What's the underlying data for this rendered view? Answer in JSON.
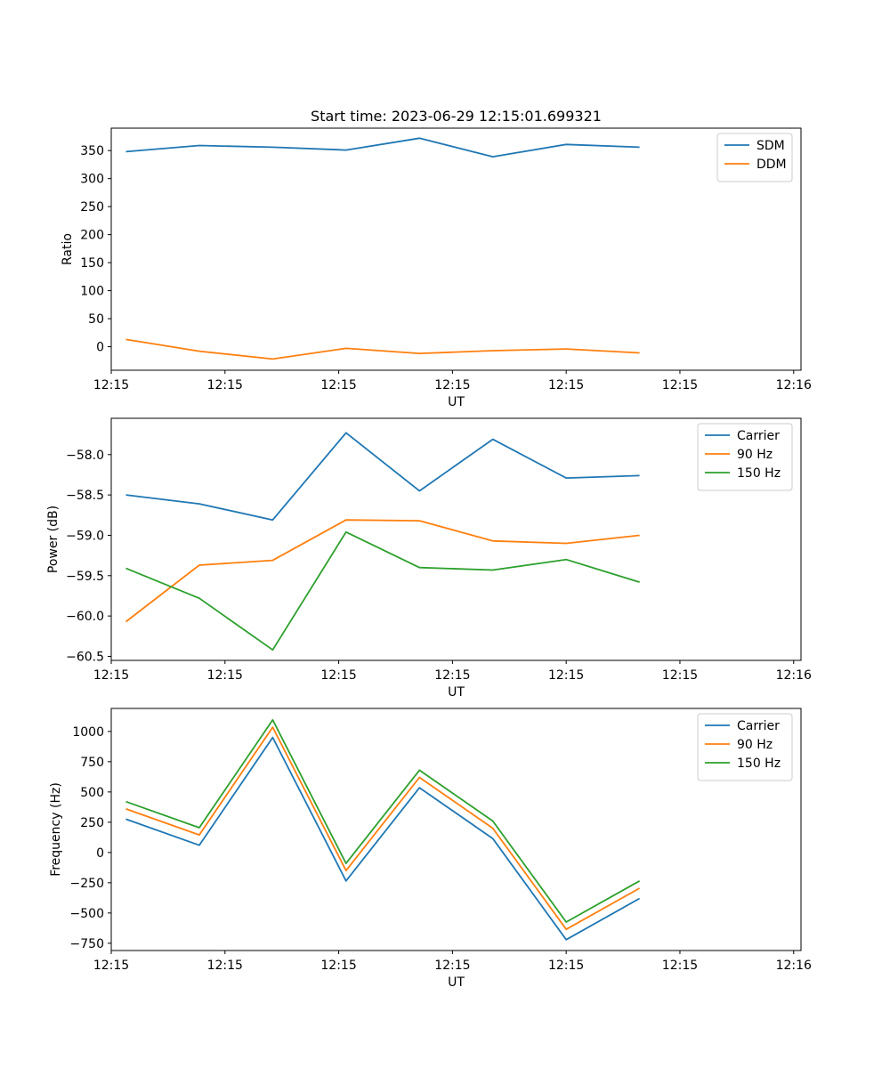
{
  "title": "Start time: 2023-06-29 12:15:01.699321",
  "chart_data": [
    {
      "type": "line",
      "title": "Start time: 2023-06-29 12:15:01.699321",
      "xlabel": "UT",
      "ylabel": "Ratio",
      "x": [
        1,
        2,
        3,
        4,
        5,
        6,
        7,
        8
      ],
      "xlim": [
        0.8,
        10.2
      ],
      "x_ticks": [
        {
          "x": 0.8,
          "label": "12:15"
        },
        {
          "x": 2.35,
          "label": "12:15"
        },
        {
          "x": 3.9,
          "label": "12:15"
        },
        {
          "x": 5.45,
          "label": "12:15"
        },
        {
          "x": 7.0,
          "label": "12:15"
        },
        {
          "x": 8.55,
          "label": "12:15"
        },
        {
          "x": 10.1,
          "label": "12:16"
        }
      ],
      "ylim": [
        -42,
        390
      ],
      "y_ticks": [
        0,
        50,
        100,
        150,
        200,
        250,
        300,
        350
      ],
      "grid": false,
      "legend": "top-right",
      "series": [
        {
          "name": "SDM",
          "color": "#1f77b4",
          "values": [
            348,
            359,
            356,
            351,
            372,
            339,
            361,
            356
          ]
        },
        {
          "name": "DDM",
          "color": "#ff7f0e",
          "values": [
            13,
            -8,
            -22,
            -3,
            -12,
            -7,
            -4,
            -11
          ]
        }
      ]
    },
    {
      "type": "line",
      "xlabel": "UT",
      "ylabel": "Power (dB)",
      "x": [
        1,
        2,
        3,
        4,
        5,
        6,
        7,
        8
      ],
      "xlim": [
        0.8,
        10.2
      ],
      "x_ticks": [
        {
          "x": 0.8,
          "label": "12:15"
        },
        {
          "x": 2.35,
          "label": "12:15"
        },
        {
          "x": 3.9,
          "label": "12:15"
        },
        {
          "x": 5.45,
          "label": "12:15"
        },
        {
          "x": 7.0,
          "label": "12:15"
        },
        {
          "x": 8.55,
          "label": "12:15"
        },
        {
          "x": 10.1,
          "label": "12:16"
        }
      ],
      "ylim": [
        -60.55,
        -57.55
      ],
      "y_ticks": [
        -58.0,
        -58.5,
        -59.0,
        -59.5,
        -60.0,
        -60.5
      ],
      "y_tick_labels": [
        "−58.0",
        "−58.5",
        "−59.0",
        "−59.5",
        "−60.0",
        "−60.5"
      ],
      "grid": false,
      "legend": "top-right",
      "series": [
        {
          "name": "Carrier",
          "color": "#1f77b4",
          "values": [
            -58.5,
            -58.61,
            -58.81,
            -57.73,
            -58.45,
            -57.81,
            -58.29,
            -58.26
          ]
        },
        {
          "name": "90 Hz",
          "color": "#ff7f0e",
          "values": [
            -60.07,
            -59.37,
            -59.31,
            -58.81,
            -58.82,
            -59.07,
            -59.1,
            -59.0
          ]
        },
        {
          "name": "150 Hz",
          "color": "#2ca02c",
          "values": [
            -59.41,
            -59.78,
            -60.42,
            -58.96,
            -59.4,
            -59.43,
            -59.3,
            -59.58
          ]
        }
      ]
    },
    {
      "type": "line",
      "xlabel": "UT",
      "ylabel": "Frequency (Hz)",
      "x": [
        1,
        2,
        3,
        4,
        5,
        6,
        7,
        8
      ],
      "xlim": [
        0.8,
        10.2
      ],
      "x_ticks": [
        {
          "x": 0.8,
          "label": "12:15"
        },
        {
          "x": 2.35,
          "label": "12:15"
        },
        {
          "x": 3.9,
          "label": "12:15"
        },
        {
          "x": 5.45,
          "label": "12:15"
        },
        {
          "x": 7.0,
          "label": "12:15"
        },
        {
          "x": 8.55,
          "label": "12:15"
        },
        {
          "x": 10.1,
          "label": "12:16"
        }
      ],
      "ylim": [
        -810,
        1190
      ],
      "y_ticks": [
        1000,
        750,
        500,
        250,
        0,
        -250,
        -500,
        -750
      ],
      "y_tick_labels": [
        "1000",
        "750",
        "500",
        "250",
        "0",
        "−250",
        "−500",
        "−750"
      ],
      "grid": false,
      "legend": "top-right",
      "series": [
        {
          "name": "Carrier",
          "color": "#1f77b4",
          "values": [
            275,
            60,
            950,
            -235,
            535,
            115,
            -720,
            -380
          ]
        },
        {
          "name": "90 Hz",
          "color": "#ff7f0e",
          "values": [
            360,
            145,
            1035,
            -150,
            620,
            200,
            -635,
            -295
          ]
        },
        {
          "name": "150 Hz",
          "color": "#2ca02c",
          "values": [
            420,
            205,
            1095,
            -90,
            680,
            260,
            -575,
            -235
          ]
        }
      ]
    }
  ]
}
